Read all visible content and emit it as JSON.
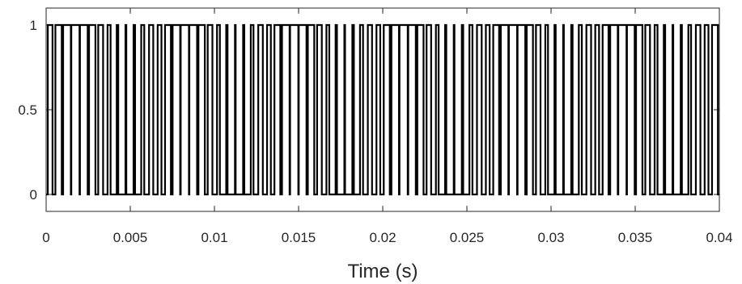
{
  "chart_data": {
    "type": "line",
    "title": "",
    "xlabel": "Time (s)",
    "ylabel": "",
    "xlim": [
      0,
      0.04
    ],
    "ylim": [
      -0.1,
      1.1
    ],
    "grid": false,
    "x_ticks": [
      0,
      0.005,
      0.01,
      0.015,
      0.02,
      0.025,
      0.03,
      0.035,
      0.04
    ],
    "x_tick_labels": [
      "0",
      "0.005",
      "0.01",
      "0.015",
      "0.02",
      "0.025",
      "0.03",
      "0.035",
      "0.04"
    ],
    "y_ticks": [
      0,
      0.5,
      1
    ],
    "y_tick_labels": [
      "0",
      "0.5",
      "1"
    ],
    "line_color": "#000000",
    "series": [
      {
        "carrier_period_s": 0.0005,
        "carrier_offset_s": 0.00024,
        "duty_cycle": [
          0.56,
          0.76,
          0.92,
          0.98,
          0.92,
          0.76,
          0.58,
          0.36,
          0.18,
          0.1,
          0.18,
          0.36,
          0.5,
          0.45,
          0.7,
          0.9,
          0.98,
          0.92,
          0.76,
          0.56,
          0.34,
          0.16,
          0.08,
          0.14,
          0.32,
          0.54,
          0.45,
          0.7,
          0.9,
          0.98,
          0.92,
          0.76,
          0.56,
          0.34,
          0.16,
          0.08,
          0.18,
          0.36,
          0.5,
          0.45,
          0.72,
          0.9,
          0.98,
          0.9,
          0.74,
          0.54,
          0.32,
          0.14,
          0.08,
          0.16,
          0.36,
          0.56,
          0.45,
          0.7,
          0.9,
          0.98,
          0.92,
          0.74,
          0.54,
          0.32,
          0.14,
          0.08,
          0.16,
          0.36,
          0.56,
          0.45,
          0.7,
          0.9,
          0.98,
          0.92,
          0.76,
          0.56,
          0.34,
          0.16,
          0.08,
          0.14,
          0.32,
          0.54,
          0.45,
          0.7
        ]
      }
    ]
  }
}
